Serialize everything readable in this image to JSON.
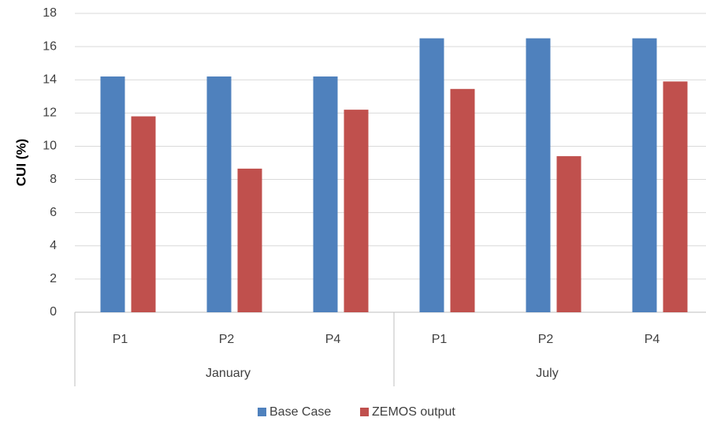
{
  "chart_data": {
    "type": "bar",
    "y_label": "CUI (%)",
    "categories": [
      "P1",
      "P2",
      "P4",
      "P1",
      "P2",
      "P4"
    ],
    "groups": [
      "January",
      "July"
    ],
    "series": [
      {
        "name": "Base Case",
        "color": "#4f81bd",
        "values": [
          14.2,
          14.2,
          14.2,
          16.5,
          16.5,
          16.5
        ]
      },
      {
        "name": "ZEMOS output",
        "color": "#c0504d",
        "values": [
          11.8,
          8.65,
          12.2,
          13.45,
          9.4,
          13.9
        ]
      }
    ],
    "ylim": [
      0,
      18
    ],
    "yticks": [
      0,
      2,
      4,
      6,
      8,
      10,
      12,
      14,
      16,
      18
    ],
    "grid": true,
    "legend": "bottom"
  }
}
